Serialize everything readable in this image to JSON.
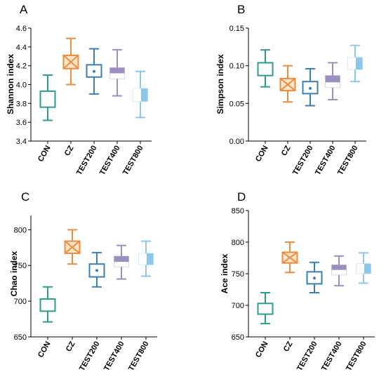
{
  "chart_data": [
    {
      "type": "box",
      "panel": "A",
      "ylabel": "Shannon index",
      "ylim": [
        3.4,
        4.6
      ],
      "yticks": [
        "3.4",
        "3.6",
        "3.8",
        "4.0",
        "4.2",
        "4.4",
        "4.6"
      ],
      "categories": [
        "CON",
        "CZ",
        "TEST200",
        "TEST400",
        "TEST800"
      ],
      "boxes": [
        {
          "min": 3.62,
          "q1": 3.76,
          "median": 3.85,
          "q3": 3.93,
          "max": 4.1
        },
        {
          "min": 4.0,
          "q1": 4.17,
          "median": 4.24,
          "q3": 4.31,
          "max": 4.49
        },
        {
          "min": 3.9,
          "q1": 4.08,
          "median": 4.14,
          "q3": 4.21,
          "max": 4.38
        },
        {
          "min": 3.88,
          "q1": 4.06,
          "median": 4.12,
          "q3": 4.18,
          "max": 4.37
        },
        {
          "min": 3.65,
          "q1": 3.82,
          "median": 3.87,
          "q3": 3.96,
          "max": 4.14
        }
      ]
    },
    {
      "type": "box",
      "panel": "B",
      "ylabel": "Simpson index",
      "ylim": [
        0.0,
        0.15
      ],
      "yticks": [
        "0.00",
        "0.05",
        "0.10",
        "0.15"
      ],
      "categories": [
        "CON",
        "CZ",
        "TEST200",
        "TEST400",
        "TEST800"
      ],
      "boxes": [
        {
          "min": 0.072,
          "q1": 0.087,
          "median": 0.094,
          "q3": 0.104,
          "max": 0.121
        },
        {
          "min": 0.052,
          "q1": 0.067,
          "median": 0.075,
          "q3": 0.083,
          "max": 0.1
        },
        {
          "min": 0.047,
          "q1": 0.063,
          "median": 0.07,
          "q3": 0.079,
          "max": 0.096
        },
        {
          "min": 0.055,
          "q1": 0.071,
          "median": 0.078,
          "q3": 0.087,
          "max": 0.104
        },
        {
          "min": 0.079,
          "q1": 0.095,
          "median": 0.102,
          "q3": 0.111,
          "max": 0.127
        }
      ]
    },
    {
      "type": "box",
      "panel": "C",
      "ylabel": "Chao index",
      "ylim": [
        650,
        820
      ],
      "yticks": [
        "650",
        "700",
        "750",
        "800"
      ],
      "categories": [
        "CON",
        "CZ",
        "TEST200",
        "TEST400",
        "TEST800"
      ],
      "boxes": [
        {
          "min": 671,
          "q1": 686,
          "median": 694,
          "q3": 703,
          "max": 720
        },
        {
          "min": 752,
          "q1": 767,
          "median": 775,
          "q3": 784,
          "max": 800
        },
        {
          "min": 720,
          "q1": 734,
          "median": 743,
          "q3": 752,
          "max": 768
        },
        {
          "min": 731,
          "q1": 748,
          "median": 755,
          "q3": 763,
          "max": 778
        },
        {
          "min": 735,
          "q1": 751,
          "median": 758,
          "q3": 767,
          "max": 784
        }
      ]
    },
    {
      "type": "box",
      "panel": "D",
      "ylabel": "Ace index",
      "ylim": [
        650,
        850
      ],
      "yticks": [
        "650",
        "700",
        "750",
        "800",
        "850"
      ],
      "categories": [
        "CON",
        "CZ",
        "TEST200",
        "TEST400",
        "TEST800"
      ],
      "boxes": [
        {
          "min": 671,
          "q1": 686,
          "median": 694,
          "q3": 703,
          "max": 720
        },
        {
          "min": 752,
          "q1": 767,
          "median": 775,
          "q3": 784,
          "max": 800
        },
        {
          "min": 720,
          "q1": 734,
          "median": 743,
          "q3": 753,
          "max": 768
        },
        {
          "min": 731,
          "q1": 748,
          "median": 756,
          "q3": 764,
          "max": 778
        },
        {
          "min": 735,
          "q1": 750,
          "median": 757,
          "q3": 766,
          "max": 783
        }
      ]
    }
  ],
  "styles": [
    {
      "name": "CON",
      "color": "#2a9d8f",
      "fill": "none",
      "marker": "none"
    },
    {
      "name": "CZ",
      "color": "#f08a3c",
      "fill": "#fde6cc",
      "marker": "cross"
    },
    {
      "name": "TEST200",
      "color": "#3a7fb5",
      "fill": "none",
      "marker": "dot"
    },
    {
      "name": "TEST400",
      "color": "#9c8fc0",
      "fill": "half",
      "marker": "none"
    },
    {
      "name": "TEST800",
      "color": "#8cc8ec",
      "fill": "half",
      "marker": "none"
    }
  ]
}
